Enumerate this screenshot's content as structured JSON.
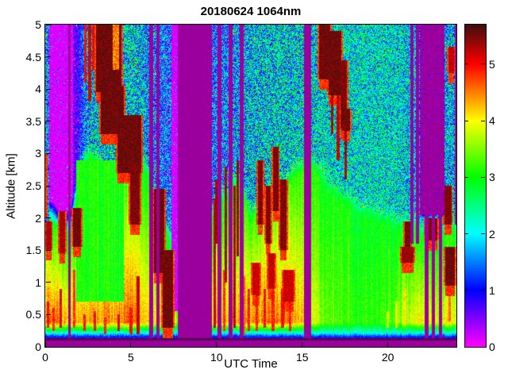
{
  "title": "20180624 1064nm",
  "xlabel": "UTC Time",
  "ylabel": "Altitude [km]",
  "axes": {
    "x_ticks": [
      0,
      5,
      10,
      15,
      20
    ],
    "y_ticks": [
      0,
      0.5,
      1,
      1.5,
      2,
      2.5,
      3,
      3.5,
      4,
      4.5,
      5
    ]
  },
  "colorbar": {
    "ticks": [
      0,
      1,
      2,
      3,
      4,
      5
    ],
    "vmin": 0,
    "vmax": 5.7,
    "nodata_color": "#9c009c",
    "dark_line_color": "#4e0150",
    "colormap_stops": {
      "0": "#ff00ff",
      "1": "#0000ff",
      "2": "#00ffff",
      "3": "#00ff00",
      "4": "#ffff00",
      "5": "#ff0000",
      "5.7": "#410e0e"
    }
  },
  "chart_data": {
    "type": "heatmap",
    "title": "20180624 1064nm",
    "xlabel": "UTC Time",
    "ylabel": "Altitude [km]",
    "x_range_hours": [
      0,
      24
    ],
    "y_range_km": [
      0,
      5
    ],
    "value_range": [
      0,
      5.7
    ],
    "colormap": "reversed-hsv: magenta(0) -> blue(1) -> cyan(2) -> green(3) -> yellow(4) -> red(5) -> dark-maroon(5.7); flat purple = no data",
    "surface": {
      "nodata_below_km": 0.1,
      "dark_line_km": [
        0.1,
        0.135
      ],
      "gradient_km_val": [
        [
          0.135,
          0.7
        ],
        [
          0.22,
          2.2
        ],
        [
          0.38,
          "surf"
        ]
      ]
    },
    "columns_format": "[utc_hour, bl_top_km, surf_val, bl_top_val, above_val, speckle_noise]",
    "columns": [
      [
        0,
        2.0,
        4.6,
        3.2,
        0.15,
        0.15
      ],
      [
        0.5,
        1.9,
        4.7,
        3.1,
        0.15,
        0.15
      ],
      [
        1,
        1.7,
        4.4,
        3.0,
        0.2,
        0.2
      ],
      [
        1.5,
        1.8,
        4.3,
        3.0,
        0.3,
        0.25
      ],
      [
        2,
        2.6,
        4.2,
        3.1,
        0.9,
        0.6
      ],
      [
        2.5,
        2.9,
        4.4,
        3.1,
        1.8,
        1.1
      ],
      [
        3,
        2.8,
        4.3,
        3.1,
        1.9,
        1.1
      ],
      [
        3.5,
        2.6,
        4.5,
        3.1,
        1.9,
        1.1
      ],
      [
        4,
        2.5,
        4.4,
        3.1,
        2.0,
        1.1
      ],
      [
        4.5,
        2.6,
        4.6,
        3.2,
        2.0,
        1.1
      ],
      [
        5,
        2.8,
        4.7,
        3.1,
        2.0,
        1.1
      ],
      [
        5.5,
        2.9,
        4.5,
        3.1,
        1.9,
        1.1
      ],
      [
        6,
        2.6,
        4.2,
        3.0,
        1.6,
        1.0
      ],
      [
        6.5,
        2.2,
        4.0,
        3.0,
        1.5,
        1.0
      ],
      [
        7,
        1.8,
        4.3,
        3.0,
        1.4,
        0.95
      ],
      [
        7.5,
        1.5,
        3.8,
        2.8,
        1.2,
        0.9
      ],
      [
        8,
        1.5,
        3.5,
        2.8,
        1.2,
        0.9
      ],
      [
        8.5,
        1.5,
        3.5,
        2.8,
        1.2,
        0.9
      ],
      [
        9,
        1.5,
        3.5,
        2.8,
        1.2,
        0.9
      ],
      [
        9.5,
        1.5,
        3.5,
        2.8,
        1.2,
        0.9
      ],
      [
        10,
        2.4,
        4.4,
        3.0,
        1.5,
        1.0
      ],
      [
        10.5,
        2.2,
        4.3,
        3.0,
        1.5,
        1.0
      ],
      [
        11,
        2.5,
        4.4,
        3.0,
        1.6,
        1.05
      ],
      [
        11.5,
        2.4,
        4.4,
        3.1,
        1.7,
        1.1
      ],
      [
        12,
        1.9,
        4.4,
        3.2,
        1.9,
        1.1
      ],
      [
        12.5,
        2.1,
        4.5,
        3.3,
        1.9,
        1.1
      ],
      [
        13,
        2.2,
        4.6,
        3.3,
        2.0,
        1.1
      ],
      [
        13.5,
        2.3,
        4.5,
        3.2,
        2.0,
        1.1
      ],
      [
        14,
        2.4,
        4.6,
        3.3,
        2.0,
        1.1
      ],
      [
        14.5,
        2.6,
        4.4,
        3.2,
        2.0,
        1.1
      ],
      [
        15,
        2.7,
        4.2,
        3.1,
        2.0,
        1.1
      ],
      [
        15.5,
        2.8,
        4.0,
        3.1,
        2.0,
        1.1
      ],
      [
        16,
        2.6,
        3.6,
        3.0,
        2.1,
        1.0
      ],
      [
        16.5,
        2.4,
        3.4,
        3.0,
        2.1,
        0.95
      ],
      [
        17,
        2.3,
        3.3,
        3.0,
        2.1,
        0.95
      ],
      [
        17.5,
        2.2,
        3.2,
        3.0,
        2.1,
        0.9
      ],
      [
        18,
        2.1,
        3.2,
        2.9,
        2.1,
        0.9
      ],
      [
        18.5,
        2.0,
        3.1,
        2.9,
        2.1,
        0.9
      ],
      [
        19,
        2.0,
        3.1,
        2.9,
        2.1,
        0.9
      ],
      [
        19.5,
        1.9,
        3.1,
        2.9,
        2.1,
        0.9
      ],
      [
        20,
        1.9,
        3.2,
        2.9,
        2.1,
        0.9
      ],
      [
        20.5,
        1.8,
        3.4,
        2.9,
        2.1,
        0.9
      ],
      [
        21,
        1.8,
        3.8,
        3.0,
        2.0,
        0.9
      ],
      [
        21.5,
        1.8,
        3.9,
        3.0,
        1.9,
        0.9
      ],
      [
        22,
        1.7,
        4.0,
        3.0,
        1.4,
        0.8
      ],
      [
        22.5,
        1.7,
        4.0,
        3.0,
        1.2,
        0.7
      ],
      [
        23,
        1.7,
        3.9,
        3.0,
        1.5,
        0.9
      ],
      [
        23.5,
        1.8,
        4.0,
        3.0,
        1.8,
        1.0
      ]
    ],
    "domes_format": "[t0,t1,alt0,alt1,value] low-value green dome inside boundary layer",
    "domes": [
      [
        1.8,
        4.6,
        0.7,
        2.9,
        3.05
      ]
    ],
    "clouds_format": "[t0,t1,alt0,alt1,value] dark-red cloud / precipitation blobs",
    "clouds": [
      [
        2.95,
        4.45,
        3.95,
        5.0,
        5.35
      ],
      [
        3.25,
        4.6,
        3.3,
        4.05,
        5.35
      ],
      [
        4.2,
        5.6,
        2.7,
        3.6,
        5.35
      ],
      [
        4.95,
        5.5,
        1.9,
        2.8,
        5.3
      ],
      [
        0.05,
        0.35,
        1.5,
        1.95,
        5.1
      ],
      [
        0.85,
        1.15,
        1.45,
        2.1,
        5.15
      ],
      [
        1.6,
        2.1,
        1.55,
        2.15,
        5.35
      ],
      [
        6.35,
        6.95,
        1.15,
        2.45,
        5.35
      ],
      [
        6.85,
        7.45,
        0.3,
        1.5,
        5.35
      ],
      [
        12.4,
        12.7,
        1.9,
        2.9,
        5.3
      ],
      [
        12.9,
        13.15,
        1.6,
        2.5,
        5.3
      ],
      [
        13.3,
        13.6,
        2.1,
        3.1,
        5.3
      ],
      [
        13.7,
        14.1,
        1.5,
        2.6,
        5.3
      ],
      [
        12.1,
        12.5,
        0.8,
        1.3,
        5.0
      ],
      [
        13.0,
        13.4,
        0.9,
        1.45,
        5.05
      ],
      [
        13.9,
        14.5,
        0.7,
        1.2,
        5.0
      ],
      [
        16.0,
        16.65,
        4.15,
        5.0,
        5.35
      ],
      [
        16.55,
        17.3,
        3.9,
        4.9,
        5.35
      ],
      [
        17.25,
        17.6,
        3.4,
        4.45,
        5.3
      ],
      [
        17.35,
        17.8,
        3.35,
        3.7,
        5.35
      ],
      [
        20.8,
        21.5,
        1.3,
        1.55,
        5.2
      ],
      [
        21.0,
        21.3,
        1.55,
        1.95,
        5.35
      ],
      [
        22.2,
        22.9,
        1.65,
        2.0,
        5.3
      ],
      [
        23.3,
        23.7,
        1.9,
        2.5,
        5.3
      ],
      [
        23.35,
        23.9,
        0.95,
        1.55,
        5.35
      ],
      [
        23.55,
        23.85,
        4.25,
        4.65,
        5.05
      ]
    ],
    "hotspots_format": "[t0,t1,alt0,alt1,value] bright red/orange core inside cloud",
    "hotspots": [
      [
        3.95,
        4.3,
        4.3,
        5.0,
        4.3
      ]
    ],
    "streaks_format": "[t,alt0,alt1,value] thin vertical enhanced-backscatter streaks",
    "streaks": [
      [
        0.08,
        2.0,
        3.0,
        4.8
      ],
      [
        2.35,
        4.1,
        5.0,
        5.0
      ],
      [
        2.6,
        3.8,
        5.0,
        5.15
      ],
      [
        2.82,
        4.3,
        5.0,
        5.05
      ],
      [
        2.3,
        0.25,
        0.5,
        4.9
      ],
      [
        2.9,
        0.25,
        0.55,
        5.0
      ],
      [
        3.5,
        0.2,
        0.45,
        4.9
      ],
      [
        4.3,
        0.25,
        0.5,
        5.1
      ],
      [
        5.0,
        0.2,
        0.6,
        5.0
      ],
      [
        5.42,
        0.2,
        1.1,
        5.2
      ],
      [
        0.15,
        0.3,
        0.7,
        5.0
      ],
      [
        0.5,
        0.25,
        0.6,
        4.9
      ],
      [
        0.9,
        0.3,
        0.9,
        5.1
      ],
      [
        1.7,
        0.3,
        1.2,
        4.8
      ],
      [
        9.9,
        0.3,
        2.3,
        5.2
      ],
      [
        10.0,
        1.6,
        2.6,
        5.35
      ],
      [
        10.45,
        0.25,
        1.2,
        4.8
      ],
      [
        10.55,
        1.0,
        2.8,
        5.3
      ],
      [
        11.05,
        0.3,
        2.5,
        5.3
      ],
      [
        11.25,
        1.4,
        2.9,
        5.35
      ],
      [
        11.62,
        0.2,
        1.1,
        4.6
      ],
      [
        11.9,
        0.25,
        0.9,
        4.9
      ],
      [
        12.35,
        0.25,
        0.8,
        4.9
      ],
      [
        12.8,
        0.3,
        0.9,
        5.0
      ],
      [
        13.3,
        0.25,
        0.85,
        4.9
      ],
      [
        13.85,
        0.3,
        0.9,
        5.0
      ],
      [
        14.3,
        0.25,
        0.8,
        4.9
      ],
      [
        16.75,
        3.3,
        4.2,
        5.3
      ],
      [
        17.1,
        2.9,
        4.0,
        5.2
      ],
      [
        17.55,
        2.6,
        3.9,
        5.3
      ],
      [
        20.0,
        0.3,
        0.55,
        3.8
      ],
      [
        20.5,
        0.3,
        0.7,
        3.9
      ],
      [
        21.0,
        0.35,
        0.9,
        4.1
      ],
      [
        23.6,
        0.4,
        1.0,
        4.6
      ]
    ],
    "gaps_format": "[t0,t1] full-height no-data purple stripes",
    "gaps": [
      [
        1.35,
        1.5
      ],
      [
        6.08,
        6.3
      ],
      [
        6.5,
        6.68
      ],
      [
        7.72,
        9.75
      ],
      [
        10.05,
        10.3
      ],
      [
        10.7,
        10.95
      ],
      [
        11.35,
        11.6
      ],
      [
        15.1,
        15.5
      ],
      [
        22.15,
        22.38
      ],
      [
        22.55,
        22.75
      ],
      [
        23.0,
        23.17
      ]
    ],
    "high_gaps_format": "[t0,t1,min_alt] no-data purple only above min_alt",
    "high_gaps": [
      [
        21.3,
        21.52,
        1.6
      ],
      [
        21.62,
        21.82,
        1.6
      ],
      [
        23.92,
        24.01,
        1.9
      ]
    ],
    "dot_gaps_format": "[t0,t1,min_alt] purple with sparse magenta/violet dots above min_alt",
    "dot_gaps": [
      [
        21.85,
        23.3,
        2.05
      ]
    ],
    "patches_format": "[t0,t1,alt0,alt1,base_val,noise] local overrides",
    "patches": [
      [
        0,
        0.22,
        1.9,
        5.0,
        1.6,
        1.1
      ],
      [
        7.38,
        7.72,
        0.55,
        5.0,
        0.3,
        0.25
      ]
    ]
  }
}
